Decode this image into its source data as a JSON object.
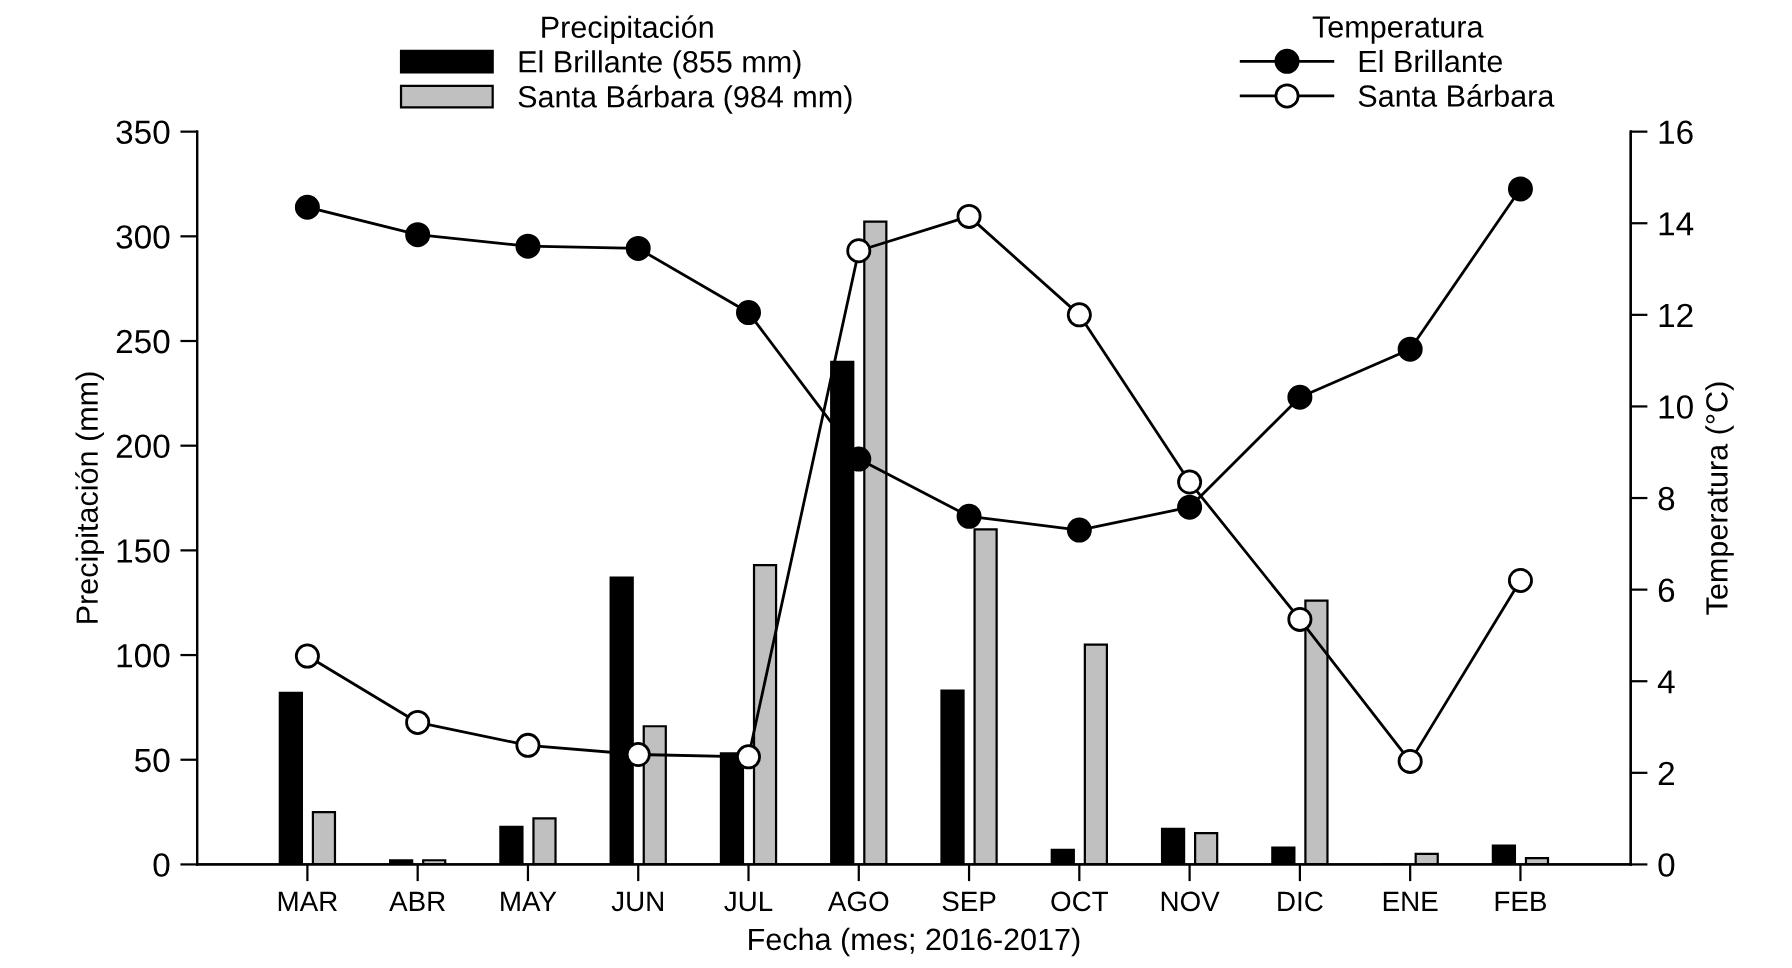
{
  "chart_data": {
    "type": "bar",
    "xlabel": "Fecha (mes; 2016-2017)",
    "ylabel": "Precipitación (mm)",
    "y2label": "Temperatura (°C)",
    "categories": [
      "MAR",
      "ABR",
      "MAY",
      "JUN",
      "JUL",
      "AGO",
      "SEP",
      "OCT",
      "NOV",
      "DIC",
      "ENE",
      "FEB"
    ],
    "series": [
      {
        "name": "El Brillante (855 mm)",
        "color": "#000000",
        "values": [
          82,
          2,
          18,
          137,
          53,
          240,
          83,
          7,
          17,
          8,
          0,
          9
        ]
      },
      {
        "name": "Santa Bárbara (984 mm)",
        "color": "#c0c0c0",
        "values": [
          25,
          2,
          22,
          66,
          143,
          307,
          160,
          105,
          15,
          126,
          5,
          3
        ]
      },
      {
        "name": "El Brillante",
        "type": "line",
        "axis": "y2",
        "color": "#000000",
        "marker": "circle",
        "values": [
          14.35,
          13.75,
          13.5,
          13.45,
          12.05,
          8.85,
          7.6,
          7.3,
          7.8,
          10.2,
          11.25,
          14.75
        ]
      },
      {
        "name": "Santa Bárbara",
        "type": "line",
        "axis": "y2",
        "color": "#ffffff",
        "marker": "circle",
        "values": [
          4.55,
          3.1,
          2.6,
          2.4,
          2.35,
          13.4,
          14.15,
          12.0,
          8.35,
          5.35,
          2.25,
          6.2
        ]
      }
    ],
    "ylim": [
      0,
      350
    ],
    "yticks": [
      0,
      50,
      100,
      150,
      200,
      250,
      300,
      350
    ],
    "y2lim": [
      0,
      16
    ],
    "y2ticks": [
      0,
      2,
      4,
      6,
      8,
      10,
      12,
      14,
      16
    ],
    "annotations": [
      "Precipitación",
      "Temperatura"
    ],
    "legend": "top",
    "grid": false
  }
}
